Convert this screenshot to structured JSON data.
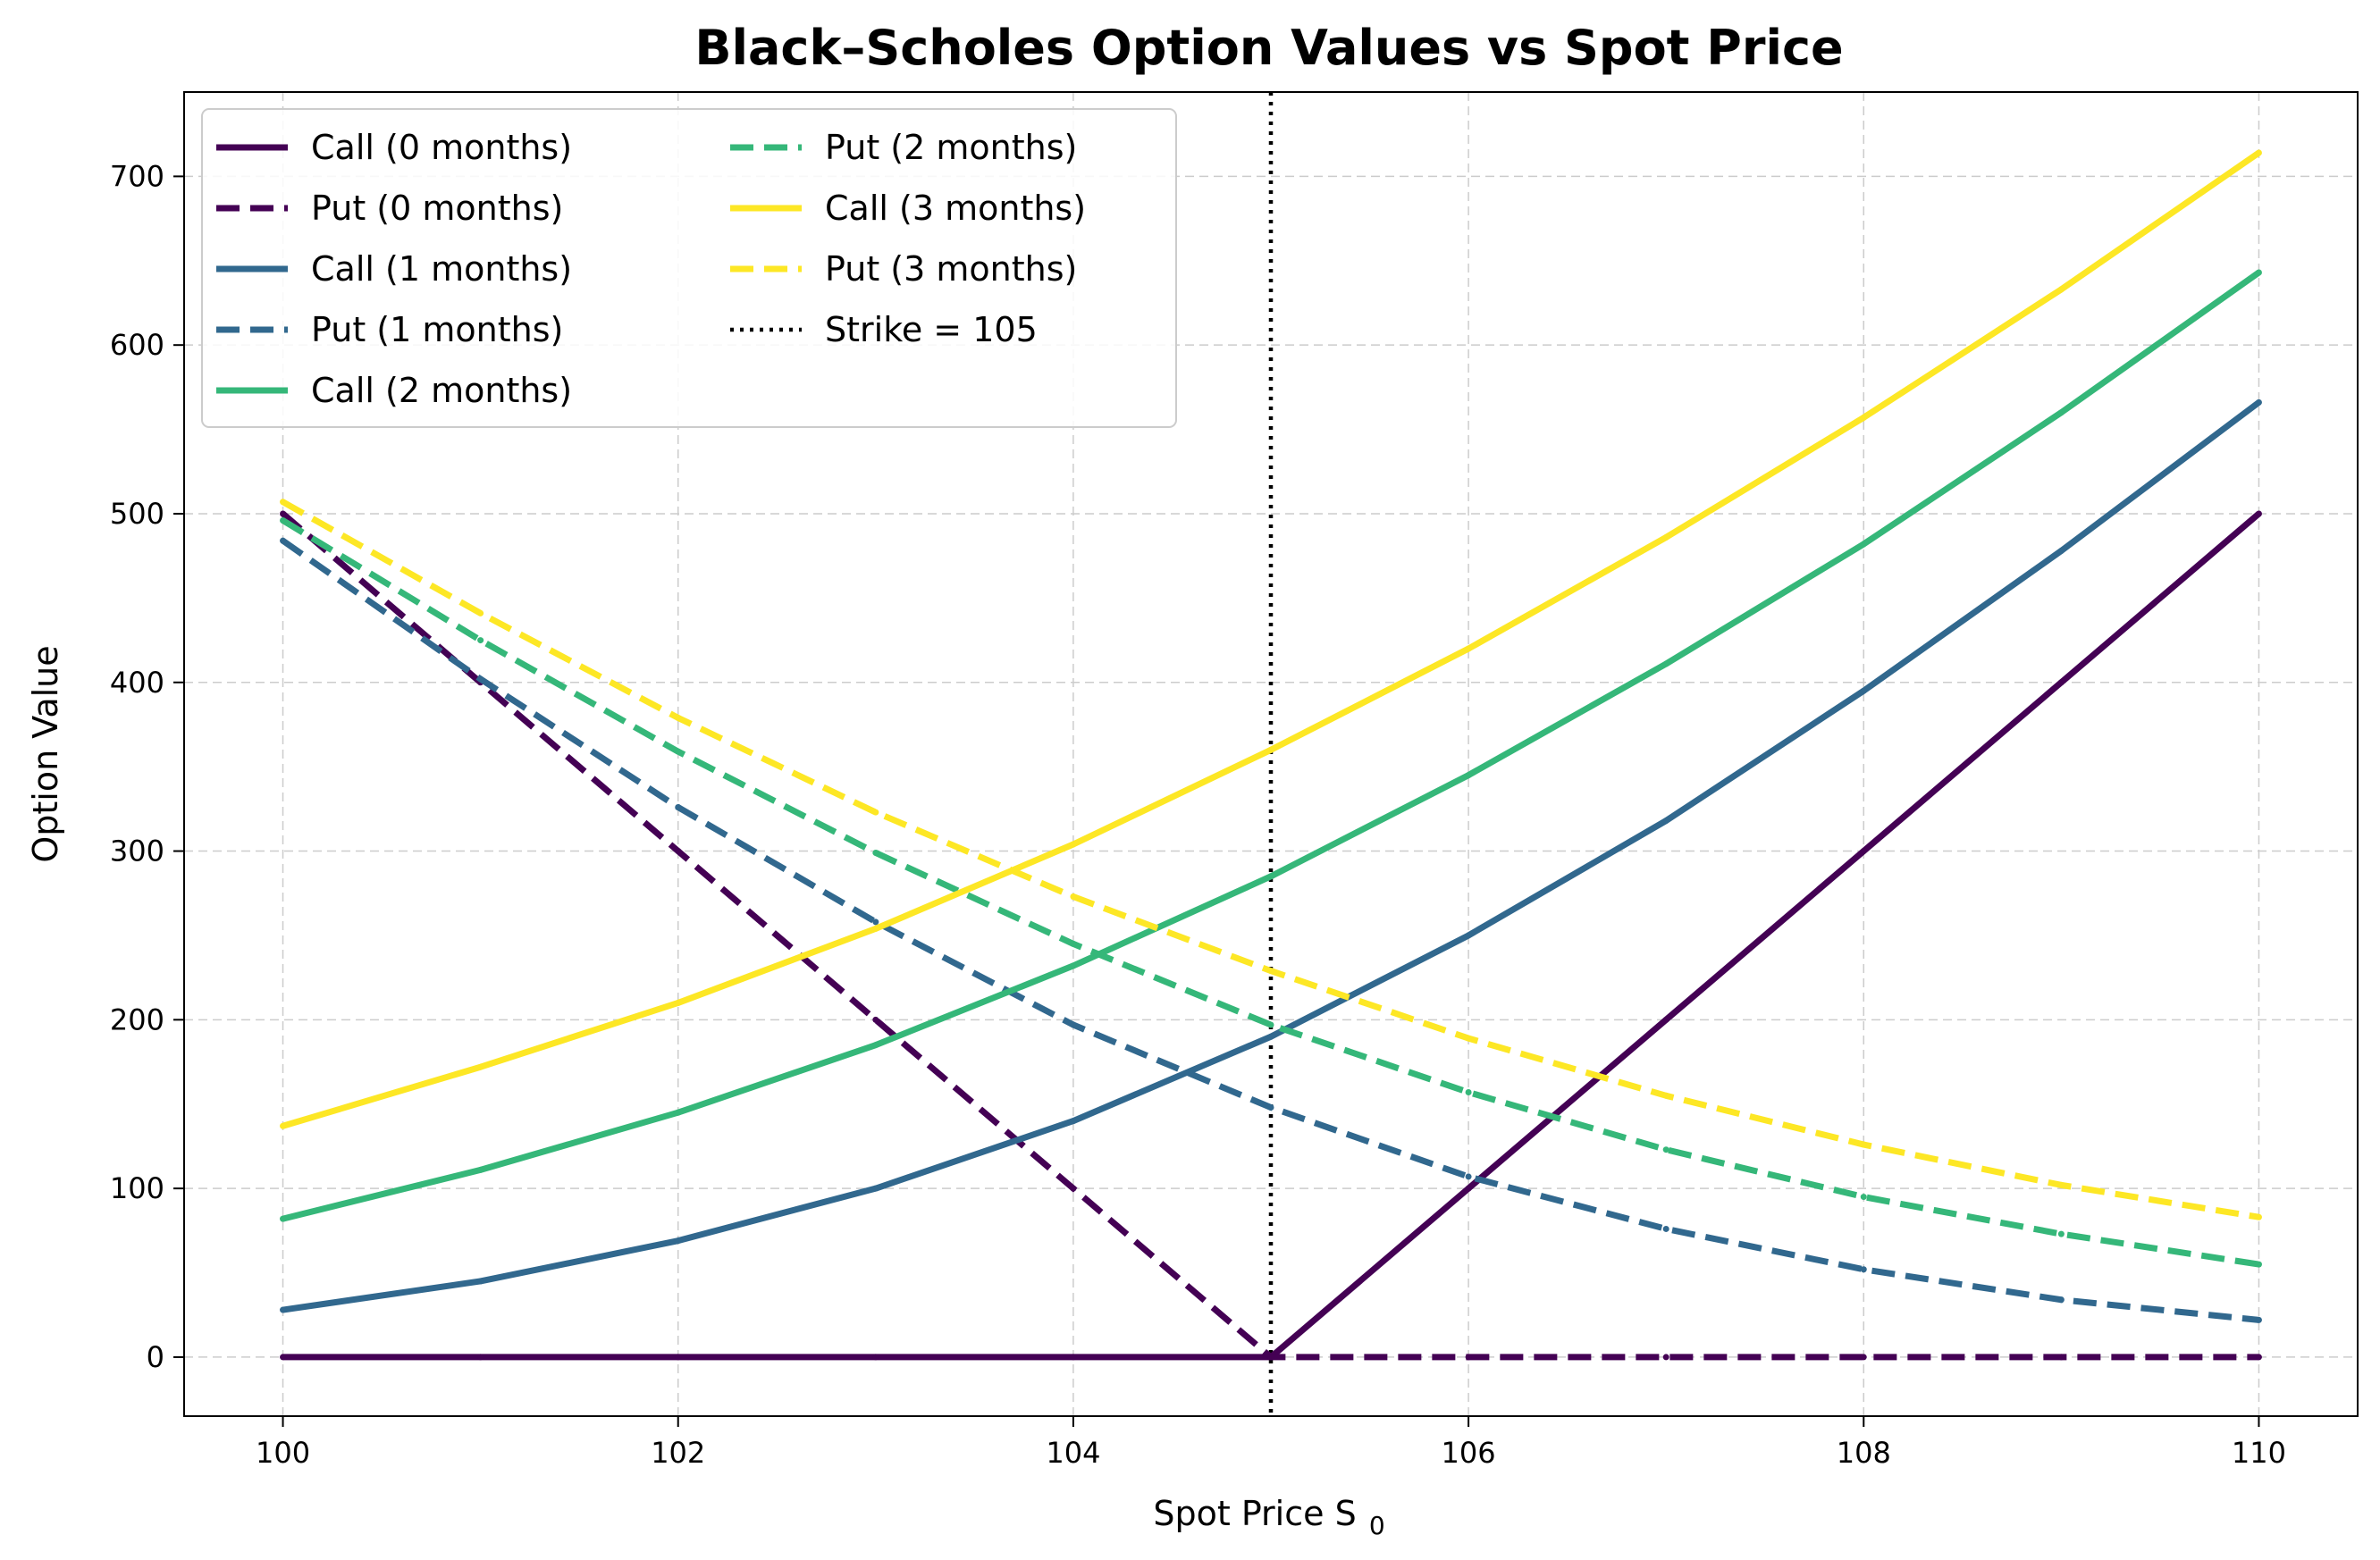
{
  "chart_data": {
    "type": "line",
    "title": "Black–Scholes Option Values vs Spot Price",
    "xlabel": "Spot Price S",
    "xlabel_subscript": "0",
    "ylabel": "Option Value",
    "xlim": [
      99.5,
      110.5
    ],
    "ylim": [
      -35,
      750
    ],
    "xticks": [
      100,
      102,
      104,
      106,
      108,
      110
    ],
    "yticks": [
      0,
      100,
      200,
      300,
      400,
      500,
      600,
      700
    ],
    "grid": true,
    "legend_position": "upper-left",
    "legend_columns": 2,
    "x": [
      100,
      101,
      102,
      103,
      104,
      105,
      106,
      107,
      108,
      109,
      110
    ],
    "series": [
      {
        "name": "Call (0 months)",
        "style": "solid",
        "color": "#440154",
        "values": [
          0,
          0,
          0,
          0,
          0,
          0,
          100,
          200,
          300,
          400,
          500
        ]
      },
      {
        "name": "Put (0 months)",
        "style": "dashed",
        "color": "#440154",
        "values": [
          500,
          400,
          300,
          200,
          100,
          0,
          0,
          0,
          0,
          0,
          0
        ]
      },
      {
        "name": "Call (1 months)",
        "style": "solid",
        "color": "#31688e",
        "values": [
          28,
          45,
          69,
          100,
          140,
          190,
          250,
          318,
          395,
          478,
          566
        ]
      },
      {
        "name": "Put (1 months)",
        "style": "dashed",
        "color": "#31688e",
        "values": [
          484,
          402,
          326,
          258,
          197,
          148,
          107,
          76,
          52,
          34,
          22
        ]
      },
      {
        "name": "Call (2 months)",
        "style": "solid",
        "color": "#35b779",
        "values": [
          82,
          111,
          145,
          185,
          232,
          285,
          345,
          411,
          482,
          560,
          643
        ]
      },
      {
        "name": "Put (2 months)",
        "style": "dashed",
        "color": "#35b779",
        "values": [
          496,
          425,
          359,
          299,
          245,
          197,
          157,
          123,
          95,
          73,
          55
        ]
      },
      {
        "name": "Call (3 months)",
        "style": "solid",
        "color": "#fde725",
        "values": [
          137,
          172,
          210,
          254,
          304,
          360,
          420,
          486,
          557,
          633,
          714
        ]
      },
      {
        "name": "Put (3 months)",
        "style": "dashed",
        "color": "#fde725",
        "values": [
          507,
          441,
          379,
          323,
          273,
          229,
          189,
          155,
          126,
          102,
          83
        ]
      }
    ],
    "vline": {
      "x": 105,
      "label": "Strike = 105",
      "style": "dotted",
      "color": "#000000"
    }
  }
}
